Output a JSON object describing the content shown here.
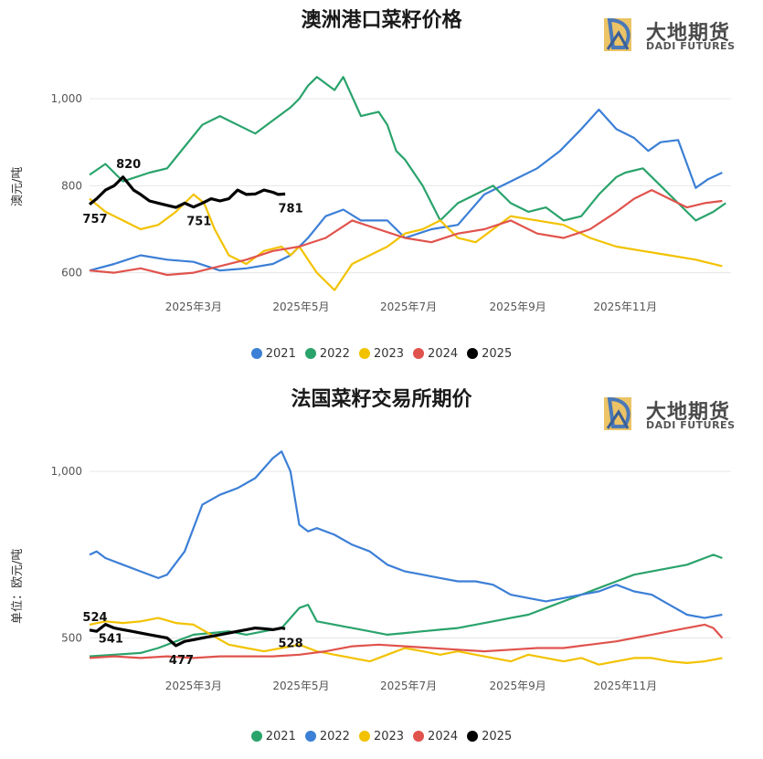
{
  "brand": {
    "name": "大地期货",
    "sub": "DADI FUTURES"
  },
  "colors": {
    "c2021": "#3c7fd6",
    "c2022": "#2aa36b",
    "c2023": "#f2c200",
    "c2024": "#e0534d",
    "c2025": "#000000",
    "grid": "#e6e6e6"
  },
  "chart_data": [
    {
      "type": "line",
      "title": "澳洲港口菜籽价格",
      "ylabel": "澳元/吨",
      "xlabel": "",
      "yticks": [
        600,
        800,
        1000
      ],
      "ytick_labels": [
        "600",
        "800",
        "1,000"
      ],
      "ylim": [
        555,
        1080
      ],
      "xlim": [
        1,
        365
      ],
      "xticks": [
        60,
        121,
        182,
        244,
        305
      ],
      "xtick_labels": [
        "2025年3月",
        "2025年5月",
        "2025年7月",
        "2025年9月",
        "2025年11月"
      ],
      "legend_position": "bottom",
      "series": [
        {
          "name": "2021",
          "color": "#3c7fd6",
          "x": [
            1,
            15,
            30,
            45,
            60,
            75,
            90,
            105,
            115,
            125,
            135,
            145,
            155,
            170,
            180,
            195,
            210,
            225,
            240,
            255,
            268,
            280,
            290,
            300,
            310,
            318,
            325,
            335,
            345,
            352,
            360
          ],
          "y": [
            605,
            620,
            640,
            630,
            625,
            605,
            610,
            620,
            640,
            680,
            730,
            745,
            720,
            720,
            680,
            700,
            710,
            780,
            810,
            840,
            880,
            930,
            975,
            930,
            910,
            880,
            900,
            905,
            795,
            815,
            830
          ]
        },
        {
          "name": "2022",
          "color": "#2aa36b",
          "x": [
            1,
            10,
            20,
            35,
            45,
            55,
            65,
            75,
            85,
            95,
            105,
            115,
            120,
            125,
            130,
            140,
            145,
            155,
            165,
            170,
            175,
            180,
            190,
            200,
            210,
            220,
            230,
            240,
            250,
            260,
            270,
            280,
            290,
            300,
            305,
            315,
            325,
            335,
            345,
            355,
            362
          ],
          "y": [
            825,
            850,
            810,
            830,
            840,
            890,
            940,
            960,
            940,
            920,
            950,
            980,
            1000,
            1030,
            1050,
            1020,
            1050,
            960,
            970,
            940,
            880,
            860,
            800,
            720,
            760,
            780,
            800,
            760,
            740,
            750,
            720,
            730,
            780,
            820,
            830,
            840,
            800,
            760,
            720,
            740,
            760
          ]
        },
        {
          "name": "2023",
          "color": "#f2c200",
          "x": [
            1,
            10,
            20,
            30,
            40,
            50,
            60,
            66,
            72,
            80,
            90,
            100,
            110,
            115,
            120,
            130,
            140,
            150,
            160,
            170,
            180,
            190,
            200,
            210,
            220,
            230,
            240,
            255,
            270,
            285,
            300,
            315,
            330,
            345,
            360
          ],
          "y": [
            770,
            740,
            720,
            700,
            710,
            740,
            780,
            760,
            700,
            640,
            620,
            650,
            660,
            640,
            660,
            600,
            560,
            620,
            640,
            660,
            690,
            700,
            720,
            680,
            670,
            700,
            730,
            720,
            710,
            680,
            660,
            650,
            640,
            630,
            615
          ]
        },
        {
          "name": "2024",
          "color": "#e0534d",
          "x": [
            1,
            15,
            30,
            45,
            60,
            75,
            90,
            105,
            120,
            135,
            150,
            165,
            180,
            195,
            210,
            225,
            240,
            255,
            270,
            285,
            300,
            310,
            320,
            330,
            340,
            350,
            360
          ],
          "y": [
            605,
            600,
            610,
            595,
            600,
            615,
            630,
            650,
            660,
            680,
            720,
            700,
            680,
            670,
            690,
            700,
            720,
            690,
            680,
            700,
            740,
            770,
            790,
            770,
            750,
            760,
            765
          ]
        },
        {
          "name": "2025",
          "color": "#000000",
          "x": [
            1,
            5,
            10,
            15,
            20,
            26,
            30,
            35,
            40,
            45,
            50,
            55,
            60,
            65,
            70,
            75,
            80,
            85,
            90,
            95,
            100,
            105,
            108,
            112
          ],
          "y": [
            757,
            770,
            790,
            800,
            820,
            790,
            780,
            765,
            760,
            755,
            750,
            760,
            751,
            760,
            770,
            765,
            770,
            790,
            780,
            781,
            790,
            785,
            780,
            781
          ]
        }
      ],
      "annotations": [
        {
          "label": "820",
          "series": "2025",
          "x": 20,
          "y": 820,
          "pos": "above"
        },
        {
          "label": "757",
          "series": "2025",
          "x": 1,
          "y": 757,
          "pos": "below"
        },
        {
          "label": "751",
          "series": "2025",
          "x": 60,
          "y": 751,
          "pos": "below"
        },
        {
          "label": "781",
          "series": "2025",
          "x": 112,
          "y": 781,
          "pos": "below"
        }
      ]
    },
    {
      "type": "line",
      "title": "法国菜籽交易所期价",
      "ylabel": "单位：欧元/吨",
      "xlabel": "",
      "yticks": [
        500,
        1000
      ],
      "ytick_labels": [
        "500",
        "1,000"
      ],
      "ylim": [
        400,
        1080
      ],
      "xlim": [
        1,
        365
      ],
      "xticks": [
        60,
        121,
        182,
        244,
        305
      ],
      "xtick_labels": [
        "2025年3月",
        "2025年5月",
        "2025年7月",
        "2025年9月",
        "2025年11月"
      ],
      "legend_position": "bottom",
      "series": [
        {
          "name": "2021",
          "color": "#2aa36b",
          "x": [
            1,
            15,
            30,
            40,
            50,
            60,
            70,
            80,
            90,
            100,
            110,
            115,
            120,
            125,
            130,
            140,
            150,
            160,
            170,
            180,
            190,
            200,
            210,
            220,
            230,
            240,
            250,
            260,
            270,
            280,
            290,
            300,
            310,
            320,
            330,
            340,
            350,
            355,
            360
          ],
          "y": [
            445,
            450,
            455,
            470,
            490,
            510,
            515,
            520,
            510,
            520,
            530,
            560,
            590,
            600,
            550,
            540,
            530,
            520,
            510,
            515,
            520,
            525,
            530,
            540,
            550,
            560,
            570,
            590,
            610,
            630,
            650,
            670,
            690,
            700,
            710,
            720,
            740,
            750,
            740
          ]
        },
        {
          "name": "2022",
          "color": "#3c7fd6",
          "x": [
            1,
            5,
            10,
            20,
            30,
            40,
            45,
            55,
            65,
            75,
            85,
            95,
            105,
            110,
            115,
            120,
            125,
            130,
            140,
            150,
            160,
            170,
            180,
            190,
            200,
            210,
            220,
            230,
            240,
            250,
            260,
            270,
            280,
            290,
            300,
            310,
            320,
            330,
            340,
            350,
            360
          ],
          "y": [
            750,
            760,
            740,
            720,
            700,
            680,
            690,
            760,
            900,
            930,
            950,
            980,
            1040,
            1060,
            1000,
            840,
            820,
            830,
            810,
            780,
            760,
            720,
            700,
            690,
            680,
            670,
            670,
            660,
            630,
            620,
            610,
            620,
            630,
            640,
            660,
            640,
            630,
            600,
            570,
            560,
            570
          ]
        },
        {
          "name": "2023",
          "color": "#f2c200",
          "x": [
            1,
            10,
            20,
            30,
            40,
            50,
            60,
            70,
            80,
            90,
            100,
            110,
            120,
            130,
            140,
            150,
            160,
            170,
            180,
            190,
            200,
            210,
            220,
            230,
            240,
            250,
            260,
            270,
            280,
            290,
            300,
            310,
            320,
            330,
            340,
            350,
            360
          ],
          "y": [
            540,
            550,
            545,
            550,
            560,
            545,
            540,
            510,
            480,
            470,
            460,
            470,
            480,
            460,
            450,
            440,
            430,
            450,
            470,
            460,
            450,
            460,
            450,
            440,
            430,
            450,
            440,
            430,
            440,
            420,
            430,
            440,
            440,
            430,
            425,
            430,
            440
          ]
        },
        {
          "name": "2024",
          "color": "#e0534d",
          "x": [
            1,
            15,
            30,
            45,
            60,
            75,
            90,
            105,
            120,
            135,
            150,
            165,
            180,
            195,
            210,
            225,
            240,
            255,
            270,
            285,
            300,
            310,
            320,
            330,
            340,
            350,
            355,
            360
          ],
          "y": [
            440,
            445,
            440,
            445,
            440,
            445,
            445,
            445,
            450,
            460,
            475,
            480,
            475,
            470,
            465,
            460,
            465,
            470,
            470,
            480,
            490,
            500,
            510,
            520,
            530,
            540,
            530,
            500
          ]
        },
        {
          "name": "2025",
          "color": "#000000",
          "x": [
            1,
            5,
            10,
            15,
            20,
            25,
            30,
            35,
            40,
            45,
            50,
            55,
            60,
            65,
            70,
            75,
            80,
            85,
            90,
            95,
            100,
            105,
            110,
            112
          ],
          "y": [
            524,
            520,
            541,
            530,
            525,
            520,
            515,
            510,
            505,
            500,
            477,
            490,
            495,
            500,
            505,
            510,
            515,
            520,
            525,
            530,
            528,
            525,
            530,
            528
          ]
        }
      ],
      "annotations": [
        {
          "label": "524",
          "series": "2025",
          "x": 1,
          "y": 524,
          "pos": "above"
        },
        {
          "label": "541",
          "series": "2025",
          "x": 10,
          "y": 541,
          "pos": "below"
        },
        {
          "label": "477",
          "series": "2025",
          "x": 50,
          "y": 477,
          "pos": "below"
        },
        {
          "label": "528",
          "series": "2025",
          "x": 112,
          "y": 528,
          "pos": "below"
        }
      ]
    }
  ]
}
